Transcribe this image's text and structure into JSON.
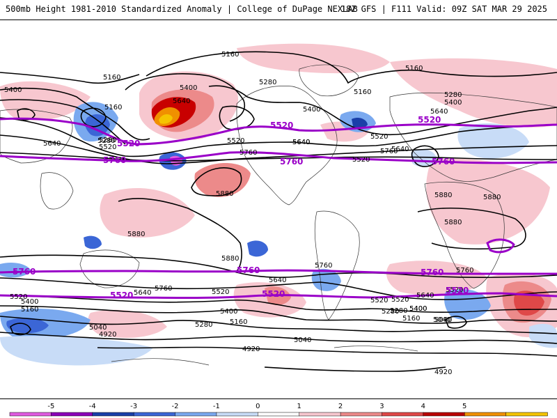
{
  "header": {
    "left_title": "500mb Height 1981-2010 Standardized Anomaly | College of DuPage NEXLAB",
    "right_title": "18Z GFS | F111 Valid: 09Z SAT MAR 29 2025"
  },
  "map": {
    "contour_labels": [
      "5160",
      "5160",
      "5400",
      "5160",
      "5280",
      "5400",
      "5640",
      "5280",
      "5160",
      "5520",
      "5640",
      "5400",
      "5280",
      "5400",
      "5640",
      "5280",
      "5520",
      "5160",
      "5640",
      "5520",
      "5760",
      "5640",
      "5760",
      "5880",
      "5880",
      "5880",
      "5880",
      "5880",
      "5880",
      "5520",
      "5760",
      "4920",
      "5640",
      "5400",
      "5160",
      "5040",
      "5280",
      "5400",
      "5160",
      "5040",
      "4920",
      "5520",
      "5760",
      "5640",
      "5520",
      "5400",
      "5520",
      "5280",
      "5160",
      "5040",
      "4920",
      "5760",
      "5640",
      "5520",
      "5400",
      "5520",
      "5640",
      "5280",
      "5040"
    ],
    "purple_contour_labels": [
      "5520",
      "5520",
      "5760",
      "5520",
      "5760",
      "5760",
      "5520",
      "5760",
      "5520",
      "5760",
      "5760",
      "5520"
    ]
  },
  "colorbar": {
    "ticks": [
      "-5",
      "-4",
      "-3",
      "-2",
      "-1",
      "0",
      "1",
      "2",
      "3",
      "4",
      "5"
    ],
    "colors": [
      "#e05ce0",
      "#8b00b8",
      "#1a3fa8",
      "#3b66d6",
      "#7aa9ef",
      "#c8dcf7",
      "#ffffff",
      "#f7c7cf",
      "#ec8a8a",
      "#df4848",
      "#b90000",
      "#f09000",
      "#f5c400"
    ],
    "purple_contour_color": "#9a00c8"
  }
}
